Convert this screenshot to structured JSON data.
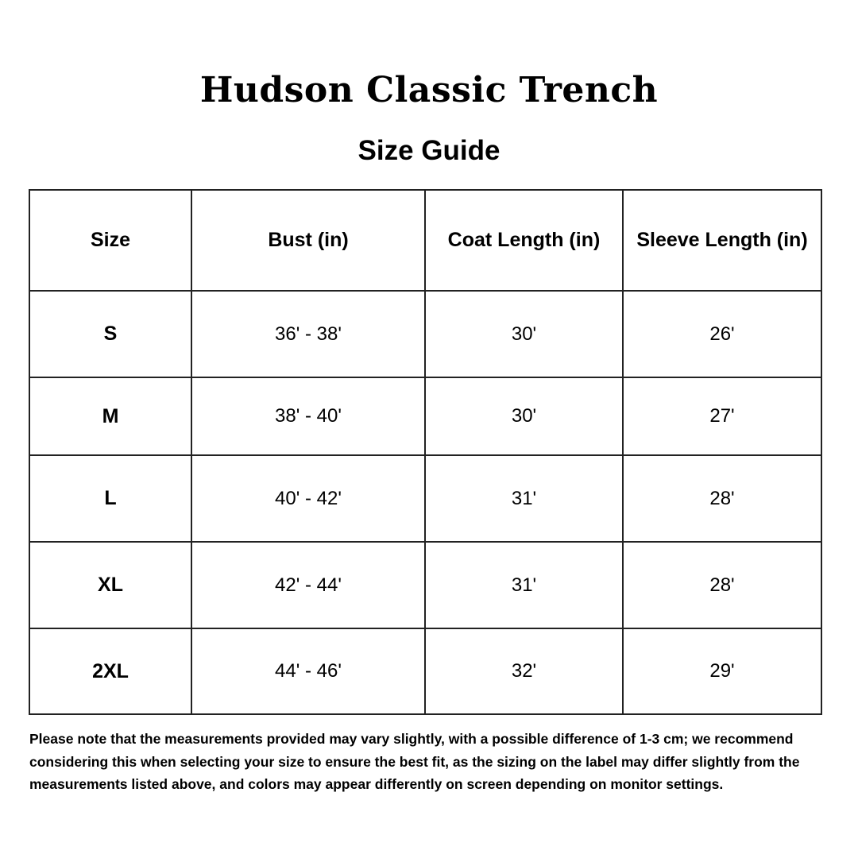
{
  "title": "Hudson Classic Trench",
  "subtitle": "Size Guide",
  "table": {
    "headers": [
      "Size",
      "Bust (in)",
      "Coat Length (in)",
      "Sleeve Length (in)"
    ],
    "rows": [
      [
        "S",
        "36' - 38'",
        "30'",
        "26'"
      ],
      [
        "M",
        "38' - 40'",
        "30'",
        "27'"
      ],
      [
        "L",
        "40' - 42'",
        "31'",
        "28'"
      ],
      [
        "XL",
        "42' - 44'",
        "31'",
        "28'"
      ],
      [
        "2XL",
        "44' - 46'",
        "32'",
        "29'"
      ]
    ]
  },
  "note": "Please note that the measurements provided may vary slightly, with a possible difference of 1-3 cm; we recommend considering this when selecting your size to ensure the best fit, as the sizing on the label may differ slightly from the measurements listed above, and colors may appear differently on screen depending on monitor settings."
}
